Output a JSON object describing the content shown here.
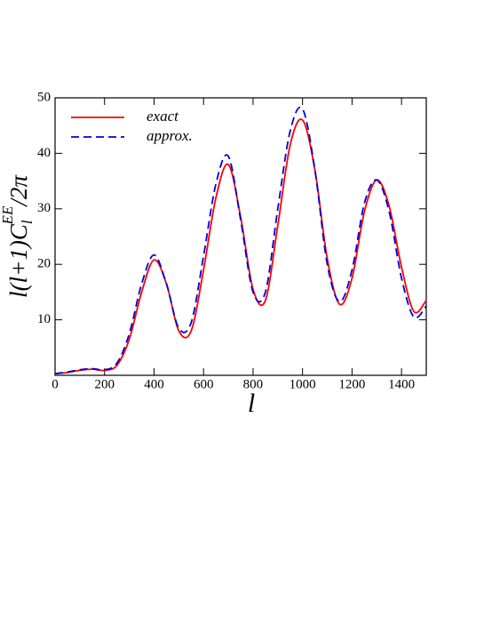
{
  "chart_data": {
    "type": "line",
    "xlabel": "l",
    "ylabel": {
      "base": "l(l+1)C",
      "sub": "l",
      "sup": "EE",
      "tail": "/2π"
    },
    "x": [
      0,
      50,
      100,
      150,
      200,
      250,
      300,
      350,
      400,
      450,
      500,
      550,
      600,
      650,
      700,
      750,
      800,
      850,
      900,
      950,
      1000,
      1050,
      1100,
      1150,
      1200,
      1250,
      1300,
      1350,
      1400,
      1450,
      1500
    ],
    "series": [
      {
        "name": "exact",
        "color": "#ff0000",
        "dash": false,
        "values": [
          0.3,
          0.5,
          0.9,
          1.1,
          0.9,
          1.8,
          6.5,
          15,
          20.8,
          16.5,
          8,
          8,
          19,
          32,
          38,
          28.5,
          15.5,
          13.5,
          27,
          41.5,
          46,
          37,
          21,
          12.8,
          17.5,
          29.5,
          35.2,
          30.5,
          19.5,
          11.5,
          13.5
        ]
      },
      {
        "name": "approx.",
        "color": "#0000dd",
        "dash": true,
        "values": [
          0.3,
          0.6,
          1.0,
          1.2,
          1.0,
          2.2,
          7.5,
          16.5,
          21.7,
          16.5,
          8.5,
          9.5,
          21.5,
          34.5,
          39.5,
          28,
          15,
          15,
          30,
          44,
          48,
          37,
          20,
          13.3,
          19,
          31,
          35.2,
          29.5,
          17.5,
          10.5,
          12.5
        ]
      }
    ],
    "xlim": [
      0,
      1500
    ],
    "ylim": [
      0,
      50
    ],
    "xticks": [
      0,
      200,
      400,
      600,
      800,
      1000,
      1200,
      1400
    ],
    "yticks": [
      10,
      20,
      30,
      40,
      50
    ],
    "legend": "upper-left"
  }
}
